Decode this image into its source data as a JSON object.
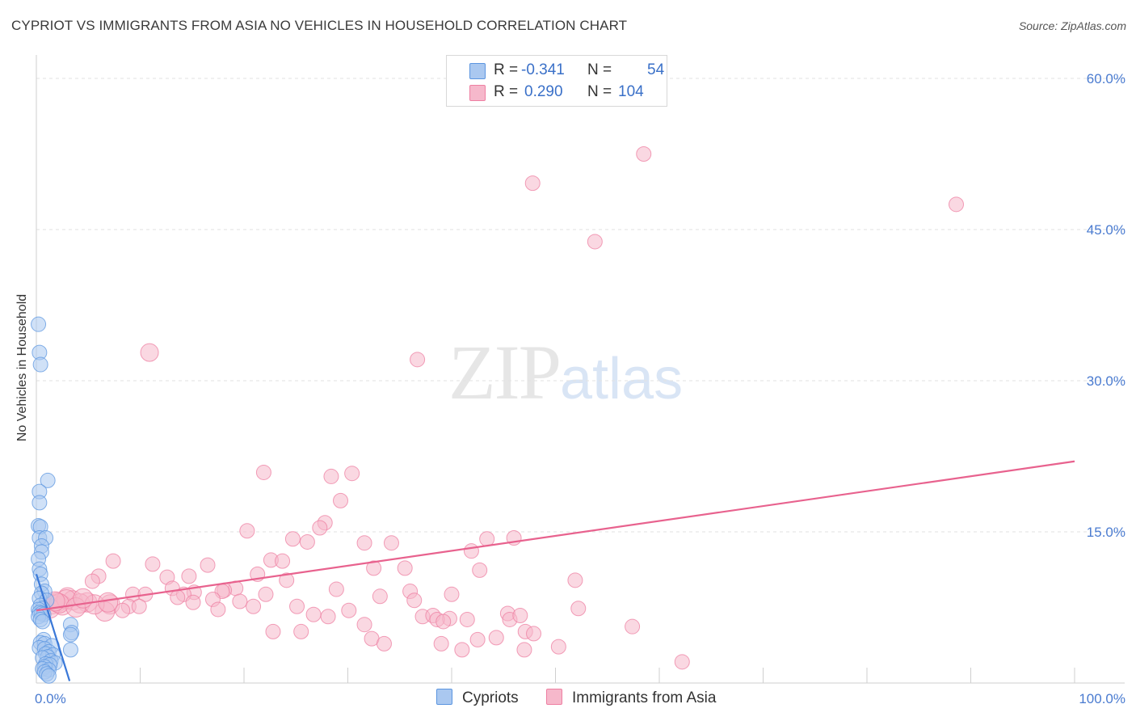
{
  "title": "CYPRIOT VS IMMIGRANTS FROM ASIA NO VEHICLES IN HOUSEHOLD CORRELATION CHART",
  "source": "Source: ZipAtlas.com",
  "watermark": {
    "zip": "ZIP",
    "atlas": "atlas"
  },
  "legend": {
    "rows": [
      {
        "r_label": "R =",
        "r_value": "-0.341",
        "n_label": "N =",
        "n_value": "54",
        "color": "#aac8f0"
      },
      {
        "r_label": "R =",
        "r_value": "0.290",
        "n_label": "N =",
        "n_value": "104",
        "color": "#f6b8cb"
      }
    ]
  },
  "bottom_legend": [
    {
      "label": "Cypriots",
      "color": "#aac8f0"
    },
    {
      "label": "Immigrants from Asia",
      "color": "#f6b8cb"
    }
  ],
  "chart_data": {
    "type": "scatter",
    "ylabel": "No Vehicles in Household",
    "xlabel": "",
    "xlim": [
      0,
      100
    ],
    "ylim": [
      0,
      60
    ],
    "y_ticks": [
      "60.0%",
      "45.0%",
      "30.0%",
      "15.0%"
    ],
    "y_tick_values": [
      60,
      45,
      30,
      15
    ],
    "x_tick_labels": [
      "0.0%",
      "100.0%"
    ],
    "grid": true,
    "legend_position": "top-center",
    "series": [
      {
        "name": "Cypriots",
        "color": "#5b95e0",
        "fill": "#aac8f0",
        "trend": {
          "x": [
            0,
            3.2
          ],
          "y": [
            10.8,
            0.2
          ],
          "color": "#3a78d8"
        },
        "points": [
          [
            0.2,
            35.6
          ],
          [
            0.3,
            32.8
          ],
          [
            0.4,
            31.6
          ],
          [
            1.1,
            20.1
          ],
          [
            0.3,
            19.0
          ],
          [
            0.3,
            17.9
          ],
          [
            0.2,
            15.6
          ],
          [
            0.4,
            15.5
          ],
          [
            0.3,
            14.4
          ],
          [
            0.9,
            14.4
          ],
          [
            0.5,
            13.6
          ],
          [
            0.5,
            13.0
          ],
          [
            0.2,
            12.3
          ],
          [
            0.3,
            11.3
          ],
          [
            0.4,
            10.8
          ],
          [
            0.5,
            9.8
          ],
          [
            0.8,
            9.1
          ],
          [
            0.5,
            8.9
          ],
          [
            0.3,
            8.4
          ],
          [
            1.0,
            8.2
          ],
          [
            0.4,
            7.7
          ],
          [
            0.6,
            7.4
          ],
          [
            0.2,
            7.3
          ],
          [
            0.3,
            7.0
          ],
          [
            0.5,
            6.9
          ],
          [
            0.7,
            6.8
          ],
          [
            0.2,
            6.6
          ],
          [
            0.4,
            6.3
          ],
          [
            0.6,
            6.1
          ],
          [
            3.3,
            5.8
          ],
          [
            3.4,
            5.0
          ],
          [
            3.3,
            4.8
          ],
          [
            0.7,
            4.3
          ],
          [
            0.4,
            4.0
          ],
          [
            0.8,
            3.9
          ],
          [
            1.5,
            3.7
          ],
          [
            0.3,
            3.5
          ],
          [
            0.8,
            3.4
          ],
          [
            3.3,
            3.3
          ],
          [
            1.2,
            3.1
          ],
          [
            0.9,
            2.9
          ],
          [
            1.6,
            2.8
          ],
          [
            1.1,
            2.6
          ],
          [
            0.6,
            2.5
          ],
          [
            1.4,
            2.2
          ],
          [
            1.8,
            2.0
          ],
          [
            0.9,
            1.9
          ],
          [
            1.3,
            1.8
          ],
          [
            0.8,
            1.6
          ],
          [
            0.6,
            1.4
          ],
          [
            1.2,
            1.3
          ],
          [
            0.8,
            1.1
          ],
          [
            1.0,
            0.9
          ],
          [
            1.2,
            0.7
          ]
        ]
      },
      {
        "name": "Immigrants from Asia",
        "color": "#ee7fa2",
        "fill": "#f6b8cb",
        "trend": {
          "x": [
            0,
            100
          ],
          "y": [
            7.2,
            22.0
          ],
          "color": "#e8628e"
        },
        "points": [
          [
            58.5,
            52.5
          ],
          [
            47.8,
            49.6
          ],
          [
            88.6,
            47.5
          ],
          [
            53.8,
            43.8
          ],
          [
            10.9,
            32.8
          ],
          [
            36.7,
            32.1
          ],
          [
            21.9,
            20.9
          ],
          [
            28.4,
            20.5
          ],
          [
            30.4,
            20.8
          ],
          [
            29.3,
            18.1
          ],
          [
            27.8,
            15.9
          ],
          [
            27.3,
            15.4
          ],
          [
            20.3,
            15.1
          ],
          [
            24.7,
            14.3
          ],
          [
            26.1,
            14.0
          ],
          [
            31.6,
            13.9
          ],
          [
            34.2,
            13.9
          ],
          [
            43.4,
            14.3
          ],
          [
            46.0,
            14.4
          ],
          [
            41.9,
            13.1
          ],
          [
            7.4,
            12.1
          ],
          [
            11.2,
            11.8
          ],
          [
            16.5,
            11.7
          ],
          [
            22.6,
            12.2
          ],
          [
            23.7,
            12.1
          ],
          [
            32.5,
            11.4
          ],
          [
            35.5,
            11.4
          ],
          [
            42.7,
            11.2
          ],
          [
            21.3,
            10.8
          ],
          [
            6.0,
            10.6
          ],
          [
            12.6,
            10.5
          ],
          [
            14.7,
            10.6
          ],
          [
            24.1,
            10.2
          ],
          [
            51.9,
            10.2
          ],
          [
            5.4,
            10.1
          ],
          [
            13.1,
            9.4
          ],
          [
            19.2,
            9.4
          ],
          [
            28.9,
            9.3
          ],
          [
            18.1,
            9.2
          ],
          [
            17.9,
            9.1
          ],
          [
            15.2,
            9.0
          ],
          [
            36.0,
            9.1
          ],
          [
            9.3,
            8.8
          ],
          [
            10.5,
            8.8
          ],
          [
            14.2,
            8.8
          ],
          [
            40.0,
            8.8
          ],
          [
            22.1,
            8.8
          ],
          [
            13.6,
            8.5
          ],
          [
            17.0,
            8.3
          ],
          [
            33.1,
            8.6
          ],
          [
            3.0,
            8.5
          ],
          [
            3.5,
            8.2
          ],
          [
            4.9,
            8.0
          ],
          [
            15.1,
            8.0
          ],
          [
            19.6,
            8.1
          ],
          [
            36.4,
            8.2
          ],
          [
            2.0,
            8.0
          ],
          [
            4.2,
            7.9
          ],
          [
            1.5,
            7.8
          ],
          [
            2.5,
            7.7
          ],
          [
            7.1,
            7.8
          ],
          [
            8.9,
            7.6
          ],
          [
            9.9,
            7.6
          ],
          [
            20.9,
            7.6
          ],
          [
            25.1,
            7.6
          ],
          [
            1.3,
            7.4
          ],
          [
            8.3,
            7.2
          ],
          [
            17.5,
            7.3
          ],
          [
            30.1,
            7.2
          ],
          [
            45.4,
            6.9
          ],
          [
            52.2,
            7.4
          ],
          [
            6.6,
            7.1
          ],
          [
            26.7,
            6.8
          ],
          [
            37.2,
            6.6
          ],
          [
            38.2,
            6.7
          ],
          [
            45.6,
            6.3
          ],
          [
            39.8,
            6.4
          ],
          [
            38.6,
            6.3
          ],
          [
            39.2,
            6.1
          ],
          [
            41.5,
            6.3
          ],
          [
            46.6,
            6.7
          ],
          [
            28.1,
            6.6
          ],
          [
            31.6,
            5.8
          ],
          [
            22.8,
            5.1
          ],
          [
            25.5,
            5.1
          ],
          [
            47.1,
            5.1
          ],
          [
            47.9,
            4.9
          ],
          [
            57.4,
            5.6
          ],
          [
            32.3,
            4.4
          ],
          [
            33.5,
            3.9
          ],
          [
            39.0,
            3.9
          ],
          [
            42.5,
            4.3
          ],
          [
            44.3,
            4.5
          ],
          [
            47.0,
            3.3
          ],
          [
            41.0,
            3.3
          ],
          [
            50.3,
            3.6
          ],
          [
            2.9,
            8.3
          ],
          [
            2.2,
            7.9
          ],
          [
            1.8,
            8.1
          ],
          [
            3.8,
            7.5
          ],
          [
            5.6,
            7.8
          ],
          [
            62.2,
            2.1
          ],
          [
            4.5,
            8.4
          ],
          [
            6.9,
            8.0
          ]
        ]
      }
    ]
  }
}
